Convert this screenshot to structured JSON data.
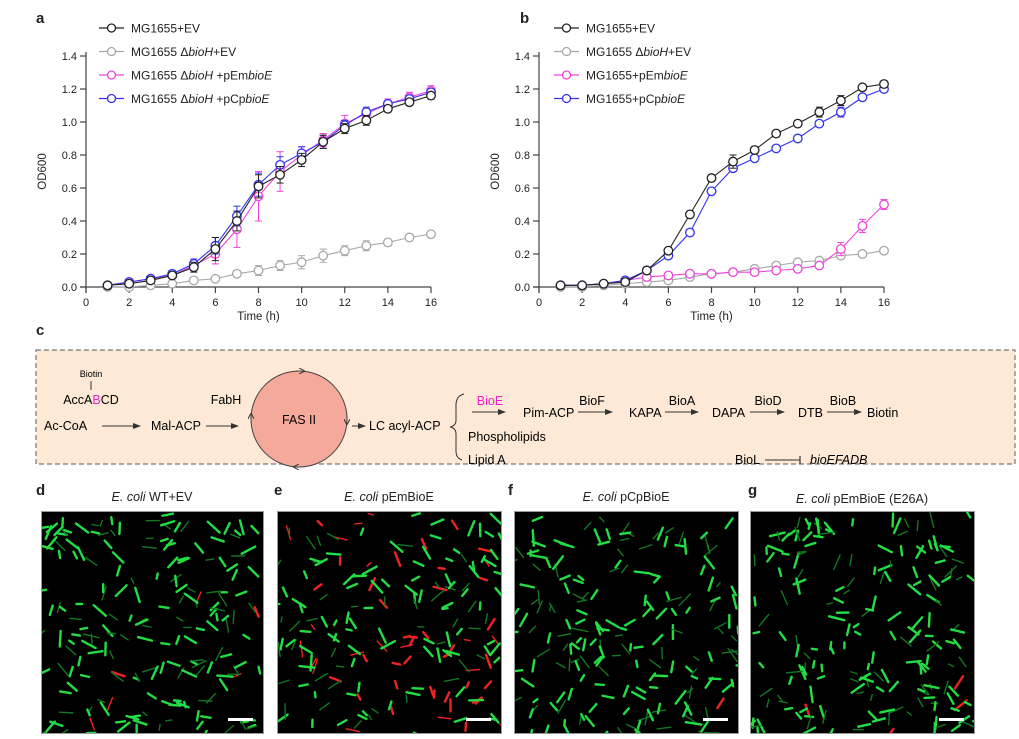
{
  "panels": {
    "a": "a",
    "b": "b",
    "c": "c",
    "d": "d",
    "e": "e",
    "f": "f",
    "g": "g"
  },
  "chart_data": [
    {
      "type": "line",
      "panel": "a",
      "xlabel": "Time (h)",
      "ylabel": "OD600",
      "xlim": [
        0,
        16
      ],
      "ylim": [
        0,
        1.4
      ],
      "xticks": [
        0,
        2,
        4,
        6,
        8,
        10,
        12,
        14,
        16
      ],
      "yticks": [
        "0.0",
        "0.2",
        "0.4",
        "0.6",
        "0.8",
        "1.0",
        "1.2",
        "1.4"
      ],
      "legend_position": "top-left",
      "x": [
        1,
        2,
        3,
        4,
        5,
        6,
        7,
        8,
        9,
        10,
        11,
        12,
        13,
        14,
        15,
        16
      ],
      "series": [
        {
          "name": "MG1655+EV",
          "name_parts": [
            "MG1655+EV"
          ],
          "color": "#222222",
          "values": [
            0.01,
            0.02,
            0.04,
            0.07,
            0.12,
            0.23,
            0.4,
            0.61,
            0.68,
            0.77,
            0.88,
            0.96,
            1.01,
            1.08,
            1.12,
            1.16
          ],
          "errors": [
            0.005,
            0.01,
            0.01,
            0.01,
            0.03,
            0.07,
            0.06,
            0.07,
            0.05,
            0.04,
            0.04,
            0.03,
            0.03,
            0.02,
            0.02,
            0.02
          ]
        },
        {
          "name": "MG1655 ΔbioH+EV",
          "name_parts": [
            "MG1655 Δ",
            "bioH",
            "+EV"
          ],
          "color": "#a8a8a8",
          "values": [
            0.0,
            0.0,
            0.01,
            0.02,
            0.04,
            0.05,
            0.08,
            0.1,
            0.13,
            0.15,
            0.19,
            0.22,
            0.25,
            0.27,
            0.3,
            0.32
          ],
          "errors": [
            0.005,
            0.005,
            0.005,
            0.01,
            0.01,
            0.01,
            0.02,
            0.03,
            0.03,
            0.04,
            0.04,
            0.03,
            0.03,
            0.02,
            0.02,
            0.02
          ]
        },
        {
          "name": "MG1655 ΔbioH +pEmbioE",
          "name_parts": [
            "MG1655 Δ",
            "bioH",
            " +pEm",
            "bioE"
          ],
          "color": "#ee44dd",
          "values": [
            0.01,
            0.03,
            0.05,
            0.07,
            0.13,
            0.2,
            0.35,
            0.55,
            0.7,
            0.8,
            0.89,
            0.99,
            1.05,
            1.11,
            1.15,
            1.19
          ],
          "errors": [
            0.005,
            0.01,
            0.01,
            0.01,
            0.03,
            0.06,
            0.11,
            0.15,
            0.12,
            0.05,
            0.04,
            0.05,
            0.03,
            0.03,
            0.03,
            0.03
          ]
        },
        {
          "name": "MG1655 ΔbioH +pCpbioE",
          "name_parts": [
            "MG1655 Δ",
            "bioH",
            " +pCp",
            "bioE"
          ],
          "color": "#3333ee",
          "values": [
            0.01,
            0.03,
            0.05,
            0.08,
            0.14,
            0.25,
            0.43,
            0.62,
            0.74,
            0.81,
            0.88,
            0.98,
            1.06,
            1.11,
            1.14,
            1.18
          ],
          "errors": [
            0.005,
            0.01,
            0.01,
            0.01,
            0.03,
            0.05,
            0.06,
            0.07,
            0.05,
            0.04,
            0.04,
            0.03,
            0.03,
            0.02,
            0.02,
            0.02
          ]
        }
      ]
    },
    {
      "type": "line",
      "panel": "b",
      "xlabel": "Time (h)",
      "ylabel": "OD600",
      "xlim": [
        0,
        16
      ],
      "ylim": [
        0,
        1.4
      ],
      "xticks": [
        0,
        2,
        4,
        6,
        8,
        10,
        12,
        14,
        16
      ],
      "yticks": [
        "0.0",
        "0.2",
        "0.4",
        "0.6",
        "0.8",
        "1.0",
        "1.2",
        "1.4"
      ],
      "legend_position": "top-left",
      "x": [
        1,
        2,
        3,
        4,
        5,
        6,
        7,
        8,
        9,
        10,
        11,
        12,
        13,
        14,
        15,
        16
      ],
      "series": [
        {
          "name": "MG1655+EV",
          "name_parts": [
            "MG1655+EV"
          ],
          "color": "#222222",
          "values": [
            0.01,
            0.01,
            0.02,
            0.03,
            0.1,
            0.22,
            0.44,
            0.66,
            0.76,
            0.83,
            0.93,
            0.99,
            1.06,
            1.13,
            1.21,
            1.23
          ],
          "errors": [
            0.005,
            0.005,
            0.005,
            0.01,
            0.01,
            0.02,
            0.02,
            0.02,
            0.04,
            0.02,
            0.02,
            0.01,
            0.03,
            0.03,
            0.01,
            0.02
          ]
        },
        {
          "name": "MG1655 ΔbioH+EV",
          "name_parts": [
            "MG1655 Δ",
            "bioH",
            "+EV"
          ],
          "color": "#a8a8a8",
          "values": [
            0.0,
            0.0,
            0.01,
            0.02,
            0.03,
            0.04,
            0.06,
            0.08,
            0.09,
            0.11,
            0.13,
            0.15,
            0.16,
            0.19,
            0.2,
            0.22
          ],
          "errors": [
            0.005,
            0.005,
            0.005,
            0.005,
            0.005,
            0.005,
            0.005,
            0.005,
            0.005,
            0.005,
            0.005,
            0.005,
            0.01,
            0.01,
            0.01,
            0.01
          ]
        },
        {
          "name": "MG1655+pEmbioE",
          "name_parts": [
            "MG1655+pEm",
            "bioE"
          ],
          "color": "#ee44dd",
          "values": [
            0.01,
            0.01,
            0.02,
            0.04,
            0.06,
            0.07,
            0.08,
            0.08,
            0.09,
            0.09,
            0.1,
            0.11,
            0.13,
            0.23,
            0.37,
            0.5
          ],
          "errors": [
            0.005,
            0.005,
            0.005,
            0.005,
            0.005,
            0.005,
            0.005,
            0.005,
            0.005,
            0.005,
            0.005,
            0.005,
            0.01,
            0.04,
            0.04,
            0.03
          ]
        },
        {
          "name": "MG1655+pCpbioE",
          "name_parts": [
            "MG1655+pCp",
            "bioE"
          ],
          "color": "#3333ee",
          "values": [
            0.01,
            0.01,
            0.02,
            0.04,
            0.1,
            0.19,
            0.33,
            0.58,
            0.72,
            0.78,
            0.84,
            0.9,
            0.99,
            1.06,
            1.15,
            1.2
          ],
          "errors": [
            0.005,
            0.005,
            0.005,
            0.01,
            0.01,
            0.02,
            0.02,
            0.02,
            0.02,
            0.01,
            0.01,
            0.02,
            0.01,
            0.03,
            0.02,
            0.01
          ]
        }
      ]
    }
  ],
  "pathway": {
    "biotin_cofactor": "Biotin",
    "acc_prefix": "AccA",
    "acc_highlight": "B",
    "acc_suffix": "CD",
    "ac_coa": "Ac-CoA",
    "mal_acp": "Mal-ACP",
    "fabh": "FabH",
    "fas2": "FAS II",
    "lc_acyl_acp": "LC acyl-ACP",
    "bioe": "BioE",
    "pim_acp": "Pim-ACP",
    "biof": "BioF",
    "kapa": "KAPA",
    "bioa": "BioA",
    "dapa": "DAPA",
    "biod": "BioD",
    "dtb": "DTB",
    "biob": "BioB",
    "biotin": "Biotin",
    "phospholipids": "Phospholipids",
    "lipid_a": "Lipid A",
    "biol": "BioL",
    "operon": "bioEFADB"
  },
  "micrographs": [
    {
      "letter": "d",
      "species": "E. coli",
      "strain": " WT+EV"
    },
    {
      "letter": "e",
      "species": "E. coli",
      "strain": " pEmBioE"
    },
    {
      "letter": "f",
      "species": "E. coli",
      "strain": " pCpBioE"
    },
    {
      "letter": "g",
      "species": "E. coli",
      "strain": " pEmBioE (E26A)"
    }
  ],
  "colors": {
    "pathway_bg": "#fde9d6",
    "fas_circle": "#f5a99a",
    "highlight": "#ee22cc",
    "live_cell": "#22dd44",
    "dead_cell": "#ee2222"
  }
}
